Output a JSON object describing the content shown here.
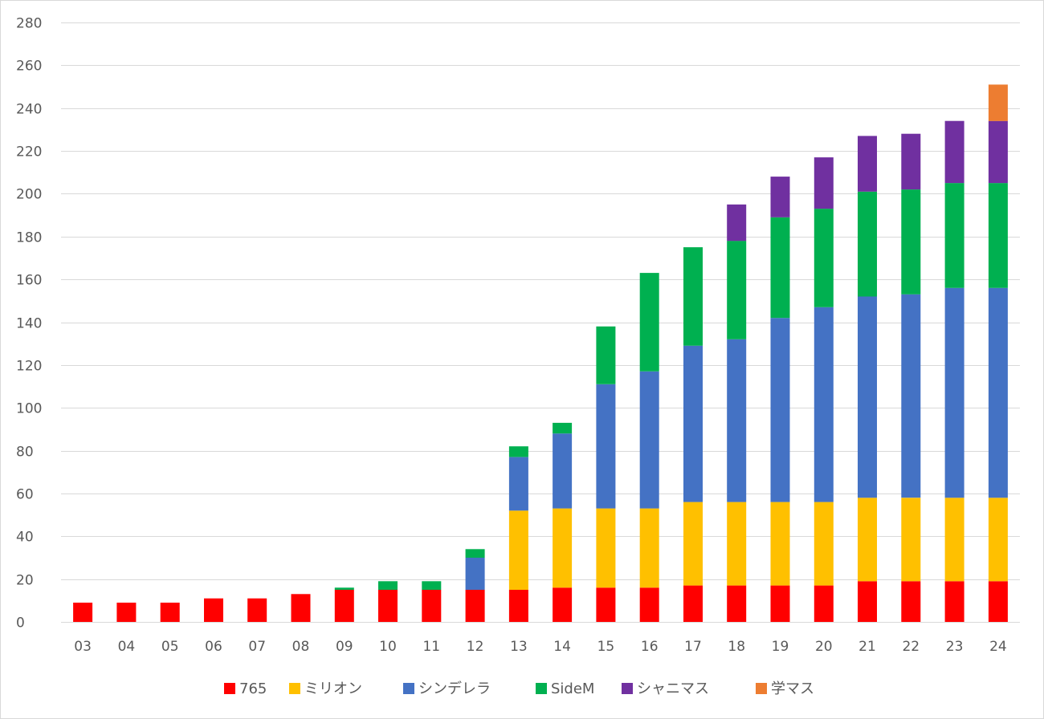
{
  "chart_data": {
    "type": "bar",
    "stacked": true,
    "title": "",
    "xlabel": "",
    "ylabel": "",
    "ylim": [
      0,
      280
    ],
    "yticks": [
      0,
      20,
      40,
      60,
      80,
      100,
      120,
      140,
      160,
      180,
      200,
      220,
      240,
      260,
      280
    ],
    "grid": true,
    "legend_position": "bottom",
    "categories": [
      "03",
      "04",
      "05",
      "06",
      "07",
      "08",
      "09",
      "10",
      "11",
      "12",
      "13",
      "14",
      "15",
      "16",
      "17",
      "18",
      "19",
      "20",
      "21",
      "22",
      "23",
      "24"
    ],
    "series": [
      {
        "name": "765",
        "color": "#ff0000",
        "values": [
          9,
          9,
          9,
          11,
          11,
          13,
          15,
          15,
          15,
          15,
          15,
          16,
          16,
          16,
          17,
          17,
          17,
          17,
          19,
          19,
          19,
          19
        ]
      },
      {
        "name": "ミリオン",
        "color": "#ffc000",
        "values": [
          0,
          0,
          0,
          0,
          0,
          0,
          0,
          0,
          0,
          0,
          37,
          37,
          37,
          37,
          39,
          39,
          39,
          39,
          39,
          39,
          39,
          39
        ]
      },
      {
        "name": "シンデレラ",
        "color": "#4472c4",
        "values": [
          0,
          0,
          0,
          0,
          0,
          0,
          0,
          0,
          0,
          15,
          25,
          35,
          58,
          64,
          73,
          76,
          86,
          91,
          94,
          95,
          98,
          98
        ]
      },
      {
        "name": "SideM",
        "color": "#00b050",
        "values": [
          0,
          0,
          0,
          0,
          0,
          0,
          1,
          4,
          4,
          4,
          5,
          5,
          27,
          46,
          46,
          46,
          47,
          46,
          49,
          49,
          49,
          49
        ]
      },
      {
        "name": "シャニマス",
        "color": "#7030a0",
        "values": [
          0,
          0,
          0,
          0,
          0,
          0,
          0,
          0,
          0,
          0,
          0,
          0,
          0,
          0,
          0,
          17,
          19,
          24,
          26,
          26,
          29,
          29
        ]
      },
      {
        "name": "学マス",
        "color": "#ed7d31",
        "values": [
          0,
          0,
          0,
          0,
          0,
          0,
          0,
          0,
          0,
          0,
          0,
          0,
          0,
          0,
          0,
          0,
          0,
          0,
          0,
          0,
          0,
          17
        ]
      }
    ]
  }
}
